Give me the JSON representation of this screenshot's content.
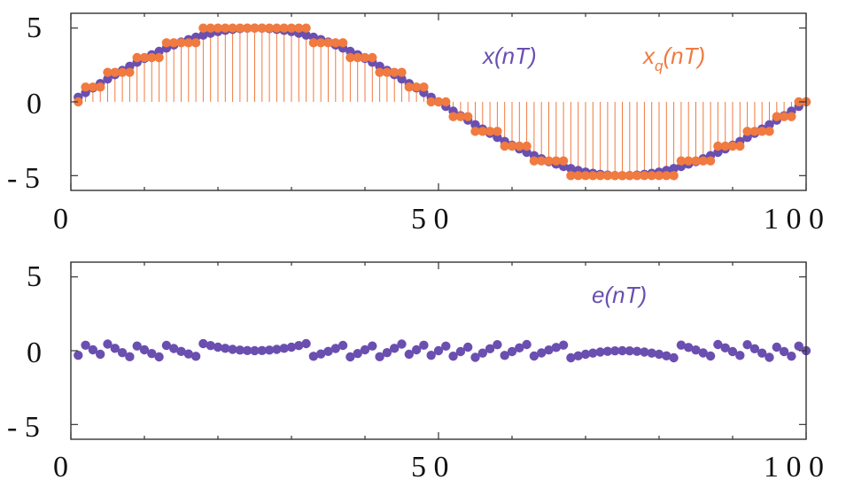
{
  "chart_data": [
    {
      "type": "scatter",
      "x": [
        1,
        2,
        3,
        4,
        5,
        6,
        7,
        8,
        9,
        10,
        11,
        12,
        13,
        14,
        15,
        16,
        17,
        18,
        19,
        20,
        21,
        22,
        23,
        24,
        25,
        26,
        27,
        28,
        29,
        30,
        31,
        32,
        33,
        34,
        35,
        36,
        37,
        38,
        39,
        40,
        41,
        42,
        43,
        44,
        45,
        46,
        47,
        48,
        49,
        50,
        51,
        52,
        53,
        54,
        55,
        56,
        57,
        58,
        59,
        60,
        61,
        62,
        63,
        64,
        65,
        66,
        67,
        68,
        69,
        70,
        71,
        72,
        73,
        74,
        75,
        76,
        77,
        78,
        79,
        80,
        81,
        82,
        83,
        84,
        85,
        86,
        87,
        88,
        89,
        90,
        91,
        92,
        93,
        94,
        95,
        96,
        97,
        98,
        99,
        100
      ],
      "series": [
        {
          "name": "x(nT)",
          "name_base": "x(nT)",
          "name_sub": "",
          "color": "#6a4fb0",
          "kind": "points",
          "values": [
            0.31,
            0.63,
            0.94,
            1.24,
            1.55,
            1.84,
            2.13,
            2.41,
            2.68,
            2.94,
            3.19,
            3.42,
            3.64,
            3.85,
            4.05,
            4.22,
            4.38,
            4.52,
            4.65,
            4.76,
            4.84,
            4.91,
            4.96,
            4.99,
            5.0,
            4.99,
            4.96,
            4.91,
            4.84,
            4.76,
            4.65,
            4.52,
            4.38,
            4.22,
            4.05,
            3.85,
            3.64,
            3.42,
            3.19,
            2.94,
            2.68,
            2.41,
            2.13,
            1.84,
            1.55,
            1.24,
            0.94,
            0.63,
            0.31,
            0.0,
            -0.31,
            -0.63,
            -0.94,
            -1.24,
            -1.55,
            -1.84,
            -2.13,
            -2.41,
            -2.68,
            -2.94,
            -3.19,
            -3.42,
            -3.64,
            -3.85,
            -4.05,
            -4.22,
            -4.38,
            -4.52,
            -4.65,
            -4.76,
            -4.84,
            -4.91,
            -4.96,
            -4.99,
            -5.0,
            -4.99,
            -4.96,
            -4.91,
            -4.84,
            -4.76,
            -4.65,
            -4.52,
            -4.38,
            -4.22,
            -4.05,
            -3.85,
            -3.64,
            -3.42,
            -3.19,
            -2.94,
            -2.68,
            -2.41,
            -2.13,
            -1.84,
            -1.55,
            -1.24,
            -0.94,
            -0.63,
            -0.31,
            0.0
          ]
        },
        {
          "name": "xq(nT)",
          "name_base": "x",
          "name_sub": "q",
          "name_rest": "(nT)",
          "color": "#f07a40",
          "kind": "stems",
          "values": [
            0,
            1,
            1,
            1,
            2,
            2,
            2,
            2,
            3,
            3,
            3,
            3,
            4,
            4,
            4,
            4,
            4,
            5,
            5,
            5,
            5,
            5,
            5,
            5,
            5,
            5,
            5,
            5,
            5,
            5,
            5,
            5,
            4,
            4,
            4,
            4,
            4,
            3,
            3,
            3,
            3,
            2,
            2,
            2,
            2,
            1,
            1,
            1,
            0,
            0,
            0,
            -1,
            -1,
            -1,
            -2,
            -2,
            -2,
            -2,
            -3,
            -3,
            -3,
            -3,
            -4,
            -4,
            -4,
            -4,
            -4,
            -5,
            -5,
            -5,
            -5,
            -5,
            -5,
            -5,
            -5,
            -5,
            -5,
            -5,
            -5,
            -5,
            -5,
            -5,
            -4,
            -4,
            -4,
            -4,
            -4,
            -3,
            -3,
            -3,
            -3,
            -2,
            -2,
            -2,
            -2,
            -1,
            -1,
            -1,
            0,
            0
          ]
        }
      ],
      "xlim": [
        0,
        100
      ],
      "ylim": [
        -6,
        6
      ],
      "xticks": [
        "0",
        "5 0",
        "1 0 0"
      ],
      "yticks": [
        "5",
        "0",
        "- 5"
      ],
      "grid": false,
      "legend": "inline, top-right"
    },
    {
      "type": "scatter",
      "x": [
        1,
        2,
        3,
        4,
        5,
        6,
        7,
        8,
        9,
        10,
        11,
        12,
        13,
        14,
        15,
        16,
        17,
        18,
        19,
        20,
        21,
        22,
        23,
        24,
        25,
        26,
        27,
        28,
        29,
        30,
        31,
        32,
        33,
        34,
        35,
        36,
        37,
        38,
        39,
        40,
        41,
        42,
        43,
        44,
        45,
        46,
        47,
        48,
        49,
        50,
        51,
        52,
        53,
        54,
        55,
        56,
        57,
        58,
        59,
        60,
        61,
        62,
        63,
        64,
        65,
        66,
        67,
        68,
        69,
        70,
        71,
        72,
        73,
        74,
        75,
        76,
        77,
        78,
        79,
        80,
        81,
        82,
        83,
        84,
        85,
        86,
        87,
        88,
        89,
        90,
        91,
        92,
        93,
        94,
        95,
        96,
        97,
        98,
        99,
        100
      ],
      "series": [
        {
          "name": "e(nT)",
          "name_base": "e(nT)",
          "name_sub": "",
          "color": "#6a4fb0",
          "kind": "points",
          "values": [
            -0.31,
            0.37,
            0.06,
            -0.24,
            0.45,
            0.16,
            -0.13,
            -0.41,
            0.32,
            0.06,
            -0.19,
            -0.42,
            0.36,
            0.15,
            -0.05,
            -0.22,
            -0.38,
            0.48,
            0.35,
            0.24,
            0.16,
            0.09,
            0.04,
            0.01,
            0.0,
            0.01,
            0.04,
            0.09,
            0.16,
            0.24,
            0.35,
            0.48,
            -0.38,
            -0.22,
            -0.05,
            0.15,
            0.36,
            -0.42,
            -0.19,
            0.06,
            0.32,
            -0.41,
            -0.13,
            0.16,
            0.45,
            -0.24,
            0.06,
            0.37,
            -0.31,
            0.0,
            0.31,
            -0.37,
            -0.06,
            0.24,
            -0.45,
            -0.16,
            0.13,
            0.41,
            -0.32,
            -0.06,
            0.19,
            0.42,
            -0.36,
            -0.15,
            0.05,
            0.22,
            0.38,
            -0.48,
            -0.35,
            -0.24,
            -0.16,
            -0.09,
            -0.04,
            -0.01,
            0.0,
            -0.01,
            -0.04,
            -0.09,
            -0.16,
            -0.24,
            -0.35,
            -0.48,
            0.38,
            0.22,
            0.05,
            -0.15,
            -0.36,
            0.42,
            0.19,
            -0.06,
            -0.32,
            0.41,
            0.13,
            -0.16,
            -0.45,
            0.24,
            -0.06,
            -0.37,
            0.31,
            0.0
          ]
        }
      ],
      "xlim": [
        0,
        100
      ],
      "ylim": [
        -6,
        6
      ],
      "xticks": [
        "0",
        "5 0",
        "1 0 0"
      ],
      "yticks": [
        "5",
        "0",
        "- 5"
      ],
      "grid": false,
      "legend": "inline, top-right"
    }
  ]
}
